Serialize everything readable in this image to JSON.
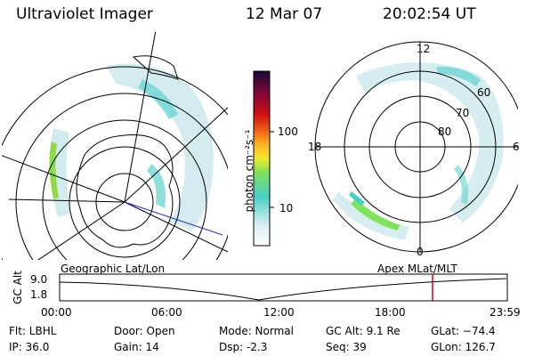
{
  "header": {
    "instrument": "Ultraviolet Imager",
    "date": "12 Mar 07",
    "time": "20:02:54 UT"
  },
  "colorbar": {
    "ticks": [
      "100",
      "10"
    ],
    "unit": "photon cm⁻²s⁻¹"
  },
  "polar_plot": {
    "clock_labels": [
      "12",
      "18",
      "6",
      "0"
    ],
    "lat_labels": [
      "60",
      "70",
      "80"
    ]
  },
  "timeline": {
    "left_label": "Geographic Lat/Lon",
    "right_label": "Apex MLat/MLT",
    "axis_title": "GC Alt",
    "y_ticks": [
      "9.0",
      "1.8"
    ],
    "x_ticks": [
      "00:00",
      "06:00",
      "12:00",
      "18:00",
      "23:59"
    ],
    "marker_color": "#cc0000"
  },
  "status": {
    "filter": "Flt: LBHL",
    "ip": "IP: 36.0",
    "door": "Door: Open",
    "gain": "Gain: 14",
    "mode": "Mode: Normal",
    "dsp": "Dsp:    -2.3",
    "gc_alt": "GC Alt: 9.1 Re",
    "seq": "Seq: 39",
    "glat": "GLat: −74.4",
    "glon": "GLon: 126.7"
  }
}
